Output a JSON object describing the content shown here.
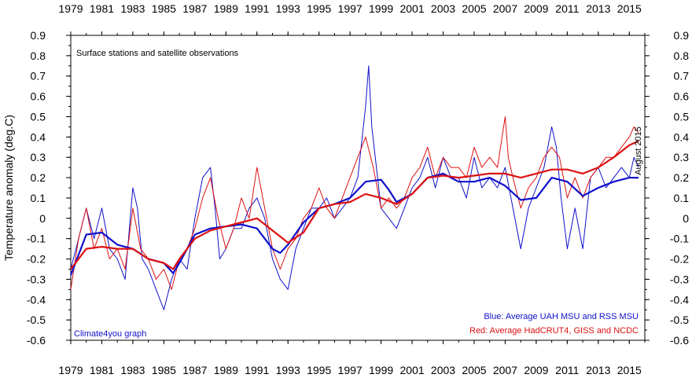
{
  "chart_data": {
    "type": "line",
    "title": "Surface stations and satellite observations",
    "ylabel": "Temperature anomaly (deg.C)",
    "xlabel": "",
    "xlim": [
      1979,
      2016
    ],
    "ylim": [
      -0.6,
      0.9
    ],
    "x_ticks": [
      1979,
      1981,
      1983,
      1985,
      1987,
      1989,
      1991,
      1993,
      1995,
      1997,
      1999,
      2001,
      2003,
      2005,
      2007,
      2009,
      2011,
      2013,
      2015
    ],
    "y_ticks": [
      -0.6,
      -0.5,
      -0.4,
      -0.3,
      -0.2,
      -0.1,
      0,
      0.1,
      0.2,
      0.3,
      0.4,
      0.5,
      0.6,
      0.7,
      0.8,
      0.9
    ],
    "grid": false,
    "legend_placement": "bottom-right",
    "notes": {
      "date_label": "August 2015",
      "credit": "Climate4you graph",
      "blue_label": "Blue: Average UAH MSU and RSS MSU",
      "red_label": "Red: Average HadCRUT4, GISS and NCDC"
    },
    "series": [
      {
        "key": "satellite_monthly",
        "color": "#1010cc",
        "width": 1,
        "x": [
          1979.0,
          1979.5,
          1980.0,
          1980.5,
          1981.0,
          1981.5,
          1982.0,
          1982.5,
          1983.0,
          1983.3,
          1983.6,
          1984.0,
          1984.5,
          1985.0,
          1985.5,
          1986.0,
          1986.5,
          1987.0,
          1987.5,
          1988.0,
          1988.3,
          1988.6,
          1989.0,
          1989.5,
          1990.0,
          1990.5,
          1991.0,
          1991.5,
          1992.0,
          1992.5,
          1993.0,
          1993.5,
          1994.0,
          1994.5,
          1995.0,
          1995.5,
          1996.0,
          1996.5,
          1997.0,
          1997.5,
          1998.0,
          1998.2,
          1998.4,
          1998.7,
          1999.0,
          1999.5,
          2000.0,
          2000.5,
          2001.0,
          2001.5,
          2002.0,
          2002.5,
          2003.0,
          2003.5,
          2004.0,
          2004.5,
          2005.0,
          2005.5,
          2006.0,
          2006.5,
          2007.0,
          2007.5,
          2008.0,
          2008.5,
          2009.0,
          2009.5,
          2010.0,
          2010.3,
          2010.6,
          2011.0,
          2011.5,
          2012.0,
          2012.5,
          2013.0,
          2013.5,
          2014.0,
          2014.5,
          2015.0,
          2015.3,
          2015.6
        ],
        "y": [
          -0.25,
          -0.1,
          0.05,
          -0.1,
          0.05,
          -0.15,
          -0.2,
          -0.3,
          0.15,
          0.05,
          -0.2,
          -0.25,
          -0.35,
          -0.45,
          -0.3,
          -0.2,
          -0.25,
          0.0,
          0.2,
          0.25,
          0.05,
          -0.2,
          -0.15,
          -0.05,
          -0.05,
          0.05,
          0.1,
          0.0,
          -0.2,
          -0.3,
          -0.35,
          -0.15,
          -0.05,
          0.05,
          0.05,
          0.1,
          0.0,
          0.05,
          0.1,
          0.2,
          0.55,
          0.75,
          0.45,
          0.25,
          0.05,
          0.0,
          -0.05,
          0.05,
          0.15,
          0.2,
          0.3,
          0.15,
          0.3,
          0.2,
          0.2,
          0.1,
          0.3,
          0.15,
          0.2,
          0.15,
          0.25,
          0.05,
          -0.15,
          0.05,
          0.15,
          0.25,
          0.45,
          0.35,
          0.1,
          -0.15,
          0.05,
          -0.15,
          0.2,
          0.25,
          0.15,
          0.2,
          0.25,
          0.2,
          0.3,
          0.25
        ]
      },
      {
        "key": "surface_monthly",
        "color": "#dd1111",
        "width": 1,
        "x": [
          1979.0,
          1979.5,
          1980.0,
          1980.5,
          1981.0,
          1981.5,
          1982.0,
          1982.5,
          1983.0,
          1983.5,
          1984.0,
          1984.5,
          1985.0,
          1985.5,
          1986.0,
          1986.5,
          1987.0,
          1987.5,
          1988.0,
          1988.5,
          1989.0,
          1989.5,
          1990.0,
          1990.5,
          1991.0,
          1991.5,
          1992.0,
          1992.5,
          1993.0,
          1993.5,
          1994.0,
          1994.5,
          1995.0,
          1995.5,
          1996.0,
          1996.5,
          1997.0,
          1997.5,
          1998.0,
          1998.5,
          1999.0,
          1999.5,
          2000.0,
          2000.5,
          2001.0,
          2001.5,
          2002.0,
          2002.5,
          2003.0,
          2003.5,
          2004.0,
          2004.5,
          2005.0,
          2005.5,
          2006.0,
          2006.5,
          2007.0,
          2007.2,
          2007.5,
          2008.0,
          2008.5,
          2009.0,
          2009.5,
          2010.0,
          2010.5,
          2011.0,
          2011.5,
          2012.0,
          2012.5,
          2013.0,
          2013.5,
          2014.0,
          2014.5,
          2015.0,
          2015.3,
          2015.6
        ],
        "y": [
          -0.35,
          -0.1,
          0.05,
          -0.15,
          -0.05,
          -0.2,
          -0.15,
          -0.25,
          0.05,
          -0.15,
          -0.2,
          -0.3,
          -0.25,
          -0.35,
          -0.2,
          -0.15,
          -0.05,
          0.1,
          0.2,
          0.0,
          -0.15,
          -0.05,
          0.1,
          0.0,
          0.25,
          0.05,
          -0.15,
          -0.25,
          -0.15,
          -0.1,
          0.0,
          0.05,
          0.15,
          0.05,
          0.0,
          0.1,
          0.2,
          0.3,
          0.4,
          0.25,
          0.05,
          0.1,
          0.05,
          0.1,
          0.2,
          0.25,
          0.35,
          0.2,
          0.3,
          0.25,
          0.25,
          0.2,
          0.35,
          0.25,
          0.3,
          0.25,
          0.5,
          0.3,
          0.2,
          0.05,
          0.15,
          0.2,
          0.3,
          0.35,
          0.3,
          0.1,
          0.2,
          0.1,
          0.2,
          0.25,
          0.3,
          0.3,
          0.35,
          0.4,
          0.45,
          0.42
        ]
      },
      {
        "key": "satellite_running_mean",
        "color": "#1010cc",
        "width": 2.2,
        "x": [
          1979.0,
          1980.0,
          1981.0,
          1982.0,
          1983.0,
          1984.0,
          1985.0,
          1985.6,
          1986.0,
          1987.0,
          1988.0,
          1989.0,
          1990.0,
          1991.0,
          1992.0,
          1992.5,
          1993.0,
          1994.0,
          1995.0,
          1996.0,
          1997.0,
          1998.0,
          1999.0,
          1999.5,
          2000.0,
          2001.0,
          2002.0,
          2003.0,
          2004.0,
          2005.0,
          2006.0,
          2007.0,
          2008.0,
          2009.0,
          2010.0,
          2011.0,
          2012.0,
          2013.0,
          2014.0,
          2015.0,
          2015.6
        ],
        "y": [
          -0.28,
          -0.08,
          -0.07,
          -0.13,
          -0.15,
          -0.2,
          -0.22,
          -0.27,
          -0.22,
          -0.08,
          -0.05,
          -0.04,
          -0.03,
          -0.05,
          -0.15,
          -0.17,
          -0.13,
          -0.02,
          0.05,
          0.07,
          0.1,
          0.18,
          0.19,
          0.14,
          0.08,
          0.12,
          0.2,
          0.22,
          0.18,
          0.18,
          0.2,
          0.16,
          0.09,
          0.1,
          0.2,
          0.18,
          0.11,
          0.15,
          0.18,
          0.2,
          0.2
        ]
      },
      {
        "key": "surface_running_mean",
        "color": "#dd1111",
        "width": 2.2,
        "x": [
          1979.0,
          1980.0,
          1981.0,
          1982.0,
          1983.0,
          1984.0,
          1985.0,
          1985.6,
          1986.0,
          1987.0,
          1988.0,
          1989.0,
          1990.0,
          1991.0,
          1992.0,
          1993.0,
          1994.0,
          1995.0,
          1996.0,
          1997.0,
          1998.0,
          1999.0,
          2000.0,
          2001.0,
          2002.0,
          2003.0,
          2004.0,
          2005.0,
          2006.0,
          2007.0,
          2008.0,
          2009.0,
          2010.0,
          2011.0,
          2012.0,
          2013.0,
          2014.0,
          2015.0,
          2015.6
        ],
        "y": [
          -0.25,
          -0.15,
          -0.14,
          -0.15,
          -0.15,
          -0.2,
          -0.22,
          -0.25,
          -0.2,
          -0.1,
          -0.06,
          -0.04,
          -0.02,
          0.0,
          -0.06,
          -0.12,
          -0.07,
          0.05,
          0.07,
          0.08,
          0.12,
          0.1,
          0.07,
          0.12,
          0.2,
          0.21,
          0.2,
          0.21,
          0.22,
          0.22,
          0.2,
          0.22,
          0.24,
          0.24,
          0.22,
          0.25,
          0.3,
          0.36,
          0.38
        ]
      }
    ]
  }
}
